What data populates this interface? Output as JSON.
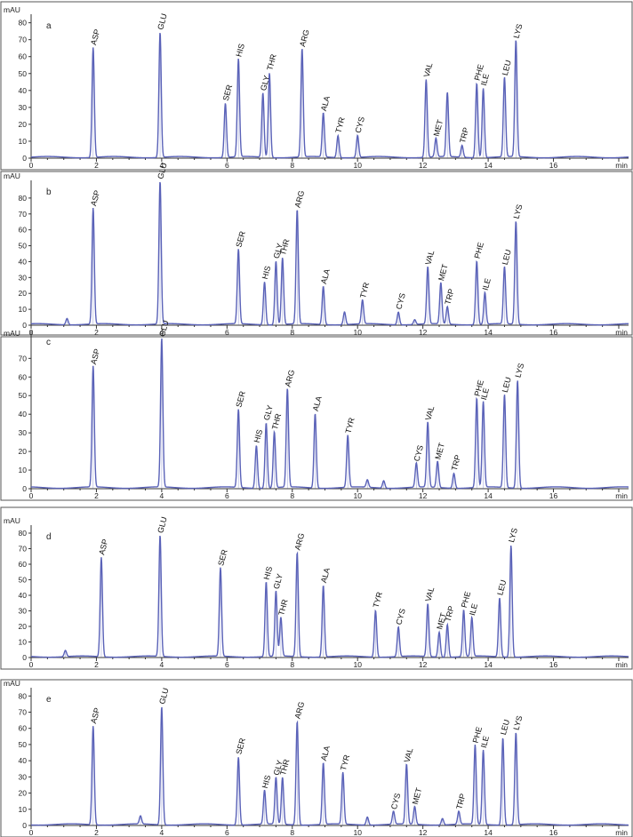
{
  "chart_data": [
    {
      "type": "line",
      "panel": "a",
      "ylabel": "mAU",
      "xlabel": "min",
      "xlim": [
        0,
        18.3
      ],
      "ylim": [
        0,
        84
      ],
      "yticks": [
        0,
        10,
        20,
        30,
        40,
        50,
        60,
        70,
        80
      ],
      "xticks": [
        0,
        2,
        4,
        6,
        8,
        10,
        12,
        14,
        16
      ],
      "series": [
        {
          "name": "absorbance",
          "color": "#5a62b8"
        }
      ],
      "peaks": [
        {
          "label": "ASP",
          "t": 1.9,
          "h": 65
        },
        {
          "label": "GLU",
          "t": 3.95,
          "h": 74
        },
        {
          "label": "SER",
          "t": 5.95,
          "h": 32
        },
        {
          "label": "HIS",
          "t": 6.35,
          "h": 58
        },
        {
          "label": "GLY",
          "t": 7.1,
          "h": 38
        },
        {
          "label": "THR",
          "t": 7.3,
          "h": 50
        },
        {
          "label": "ARG",
          "t": 8.3,
          "h": 64
        },
        {
          "label": "ALA",
          "t": 8.95,
          "h": 26
        },
        {
          "label": "TYR",
          "t": 9.4,
          "h": 13
        },
        {
          "label": "CYS",
          "t": 10.0,
          "h": 13
        },
        {
          "label": "VAL",
          "t": 12.1,
          "h": 46
        },
        {
          "label": "MET",
          "t": 12.4,
          "h": 11
        },
        {
          "label": "",
          "t": 12.75,
          "h": 38
        },
        {
          "label": "TRP",
          "t": 13.2,
          "h": 7
        },
        {
          "label": "PHE",
          "t": 13.65,
          "h": 44
        },
        {
          "label": "ILE",
          "t": 13.85,
          "h": 41
        },
        {
          "label": "LEU",
          "t": 14.5,
          "h": 47
        },
        {
          "label": "LYS",
          "t": 14.85,
          "h": 69
        }
      ]
    },
    {
      "type": "line",
      "panel": "b",
      "ylabel": "mAU",
      "xlabel": "min",
      "xlim": [
        0,
        18.3
      ],
      "ylim": [
        0,
        90
      ],
      "yticks": [
        0,
        10,
        20,
        30,
        40,
        50,
        60,
        70,
        80
      ],
      "xticks": [
        0,
        2,
        4,
        6,
        8,
        10,
        12,
        14,
        16
      ],
      "series": [
        {
          "name": "absorbance",
          "color": "#5a62b8"
        }
      ],
      "peaks": [
        {
          "label": "",
          "t": 1.1,
          "h": 4
        },
        {
          "label": "ASP",
          "t": 1.9,
          "h": 73
        },
        {
          "label": "GLU",
          "t": 3.95,
          "h": 90
        },
        {
          "label": "SER",
          "t": 6.35,
          "h": 47
        },
        {
          "label": "HIS",
          "t": 7.15,
          "h": 27
        },
        {
          "label": "GLY",
          "t": 7.5,
          "h": 40
        },
        {
          "label": "THR",
          "t": 7.7,
          "h": 42
        },
        {
          "label": "ARG",
          "t": 8.15,
          "h": 72
        },
        {
          "label": "ALA",
          "t": 8.95,
          "h": 24
        },
        {
          "label": "",
          "t": 9.6,
          "h": 8
        },
        {
          "label": "TYR",
          "t": 10.15,
          "h": 15
        },
        {
          "label": "CYS",
          "t": 11.25,
          "h": 8
        },
        {
          "label": "",
          "t": 11.75,
          "h": 3
        },
        {
          "label": "VAL",
          "t": 12.15,
          "h": 36
        },
        {
          "label": "MET",
          "t": 12.55,
          "h": 26
        },
        {
          "label": "TRP",
          "t": 12.75,
          "h": 11
        },
        {
          "label": "PHE",
          "t": 13.65,
          "h": 40
        },
        {
          "label": "ILE",
          "t": 13.9,
          "h": 20
        },
        {
          "label": "LEU",
          "t": 14.5,
          "h": 36
        },
        {
          "label": "LYS",
          "t": 14.85,
          "h": 65
        }
      ]
    },
    {
      "type": "line",
      "panel": "c",
      "ylabel": "mAU",
      "xlabel": "min",
      "xlim": [
        0,
        18.3
      ],
      "ylim": [
        0,
        84
      ],
      "yticks": [
        0,
        10,
        20,
        30,
        40,
        50,
        60,
        70,
        80
      ],
      "xticks": [
        0,
        2,
        4,
        6,
        8,
        10,
        12,
        14,
        16
      ],
      "series": [
        {
          "name": "absorbance",
          "color": "#5a62b8"
        }
      ],
      "peaks": [
        {
          "label": "ASP",
          "t": 1.9,
          "h": 65
        },
        {
          "label": "GLU",
          "t": 4.0,
          "h": 80
        },
        {
          "label": "SER",
          "t": 6.35,
          "h": 42
        },
        {
          "label": "HIS",
          "t": 6.9,
          "h": 23
        },
        {
          "label": "GLY",
          "t": 7.2,
          "h": 35
        },
        {
          "label": "THR",
          "t": 7.45,
          "h": 30
        },
        {
          "label": "ARG",
          "t": 7.85,
          "h": 53
        },
        {
          "label": "ALA",
          "t": 8.7,
          "h": 40
        },
        {
          "label": "TYR",
          "t": 9.7,
          "h": 28
        },
        {
          "label": "",
          "t": 10.3,
          "h": 4
        },
        {
          "label": "",
          "t": 10.8,
          "h": 4
        },
        {
          "label": "CYS",
          "t": 11.8,
          "h": 13
        },
        {
          "label": "VAL",
          "t": 12.15,
          "h": 35
        },
        {
          "label": "MET",
          "t": 12.45,
          "h": 14
        },
        {
          "label": "TRP",
          "t": 12.95,
          "h": 8
        },
        {
          "label": "PHE",
          "t": 13.65,
          "h": 48
        },
        {
          "label": "ILE",
          "t": 13.85,
          "h": 46
        },
        {
          "label": "LEU",
          "t": 14.5,
          "h": 50
        },
        {
          "label": "LYS",
          "t": 14.9,
          "h": 58
        }
      ]
    },
    {
      "type": "line",
      "panel": "d",
      "ylabel": "mAU",
      "xlabel": "min",
      "xlim": [
        0,
        18.3
      ],
      "ylim": [
        0,
        84
      ],
      "yticks": [
        0,
        10,
        20,
        30,
        40,
        50,
        60,
        70,
        80
      ],
      "xticks": [
        0,
        2,
        4,
        6,
        8,
        10,
        12,
        14,
        16
      ],
      "series": [
        {
          "name": "absorbance",
          "color": "#5a62b8"
        }
      ],
      "peaks": [
        {
          "label": "",
          "t": 1.05,
          "h": 4
        },
        {
          "label": "ASP",
          "t": 2.15,
          "h": 64
        },
        {
          "label": "GLU",
          "t": 3.95,
          "h": 78
        },
        {
          "label": "SER",
          "t": 5.8,
          "h": 57
        },
        {
          "label": "HIS",
          "t": 7.2,
          "h": 48
        },
        {
          "label": "GLY",
          "t": 7.5,
          "h": 42
        },
        {
          "label": "THR",
          "t": 7.65,
          "h": 25
        },
        {
          "label": "ARG",
          "t": 8.15,
          "h": 67
        },
        {
          "label": "ALA",
          "t": 8.95,
          "h": 46
        },
        {
          "label": "TYR",
          "t": 10.55,
          "h": 30
        },
        {
          "label": "CYS",
          "t": 11.25,
          "h": 19
        },
        {
          "label": "VAL",
          "t": 12.15,
          "h": 34
        },
        {
          "label": "MET",
          "t": 12.5,
          "h": 16
        },
        {
          "label": "TRP",
          "t": 12.75,
          "h": 21
        },
        {
          "label": "PHE",
          "t": 13.25,
          "h": 30
        },
        {
          "label": "ILE",
          "t": 13.5,
          "h": 25
        },
        {
          "label": "LEU",
          "t": 14.35,
          "h": 38
        },
        {
          "label": "LYS",
          "t": 14.7,
          "h": 72
        }
      ]
    },
    {
      "type": "line",
      "panel": "e",
      "ylabel": "mAU",
      "xlabel": "min",
      "xlim": [
        0,
        18.3
      ],
      "ylim": [
        0,
        84
      ],
      "yticks": [
        0,
        10,
        20,
        30,
        40,
        50,
        60,
        70,
        80
      ],
      "xticks": [
        0,
        2,
        4,
        6,
        8,
        10,
        12,
        14,
        16
      ],
      "series": [
        {
          "name": "absorbance",
          "color": "#5a62b8"
        }
      ],
      "peaks": [
        {
          "label": "ASP",
          "t": 1.9,
          "h": 61
        },
        {
          "label": "",
          "t": 3.35,
          "h": 5
        },
        {
          "label": "GLU",
          "t": 4.0,
          "h": 73
        },
        {
          "label": "SER",
          "t": 6.35,
          "h": 42
        },
        {
          "label": "HIS",
          "t": 7.15,
          "h": 21
        },
        {
          "label": "GLY",
          "t": 7.5,
          "h": 29
        },
        {
          "label": "THR",
          "t": 7.7,
          "h": 29
        },
        {
          "label": "ARG",
          "t": 8.15,
          "h": 64
        },
        {
          "label": "ALA",
          "t": 8.95,
          "h": 38
        },
        {
          "label": "TYR",
          "t": 9.55,
          "h": 32
        },
        {
          "label": "",
          "t": 10.3,
          "h": 5
        },
        {
          "label": "CYS",
          "t": 11.1,
          "h": 8
        },
        {
          "label": "VAL",
          "t": 11.5,
          "h": 37
        },
        {
          "label": "MET",
          "t": 11.75,
          "h": 11
        },
        {
          "label": "",
          "t": 12.6,
          "h": 4
        },
        {
          "label": "TRP",
          "t": 13.1,
          "h": 8
        },
        {
          "label": "PHE",
          "t": 13.6,
          "h": 49
        },
        {
          "label": "ILE",
          "t": 13.85,
          "h": 46
        },
        {
          "label": "LEU",
          "t": 14.45,
          "h": 54
        },
        {
          "label": "LYS",
          "t": 14.85,
          "h": 57
        }
      ]
    }
  ]
}
